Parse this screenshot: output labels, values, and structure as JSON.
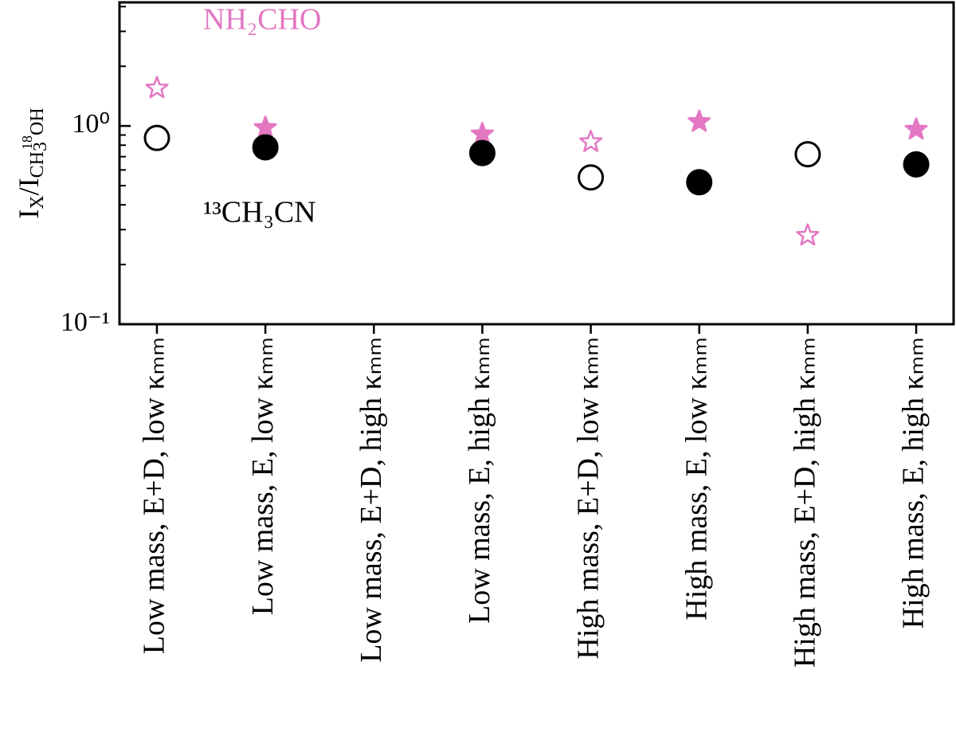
{
  "chart_data": {
    "type": "scatter",
    "ylabel": [
      "I",
      "X",
      "/I",
      "CH",
      "3",
      "18",
      "OH"
    ],
    "categories": [
      "Low mass, E+D, low κₘₘ",
      "Low mass, E, low κₘₘ",
      "Low mass, E+D, high κₘₘ",
      "Low mass, E, high κₘₘ",
      "High mass, E+D, low κₘₘ",
      "High mass, E, low κₘₘ",
      "High mass, E+D, high κₘₘ",
      "High mass, E, high κₘₘ"
    ],
    "series": [
      {
        "name": "NH₂CHO",
        "color": "#e377c2",
        "marker": "star",
        "values": [
          1.55,
          0.98,
          null,
          0.91,
          0.83,
          1.05,
          0.28,
          0.96
        ],
        "filled": [
          false,
          true,
          null,
          true,
          false,
          true,
          false,
          true
        ]
      },
      {
        "name": "¹³CH₃CN",
        "color": "#000000",
        "marker": "circle",
        "values": [
          0.87,
          0.78,
          null,
          0.73,
          0.55,
          0.52,
          0.72,
          0.64
        ],
        "filled": [
          false,
          true,
          null,
          true,
          false,
          true,
          false,
          true
        ]
      }
    ],
    "yscale": "log",
    "ylim": [
      0.1,
      4.2
    ],
    "yticks": [
      {
        "value": 0.1,
        "label": "10⁻¹"
      },
      {
        "value": 1,
        "label": "10⁰"
      }
    ],
    "yminorticks": [
      0.2,
      0.3,
      0.4,
      0.5,
      0.6,
      0.7,
      0.8,
      0.9,
      2,
      3,
      4
    ]
  }
}
